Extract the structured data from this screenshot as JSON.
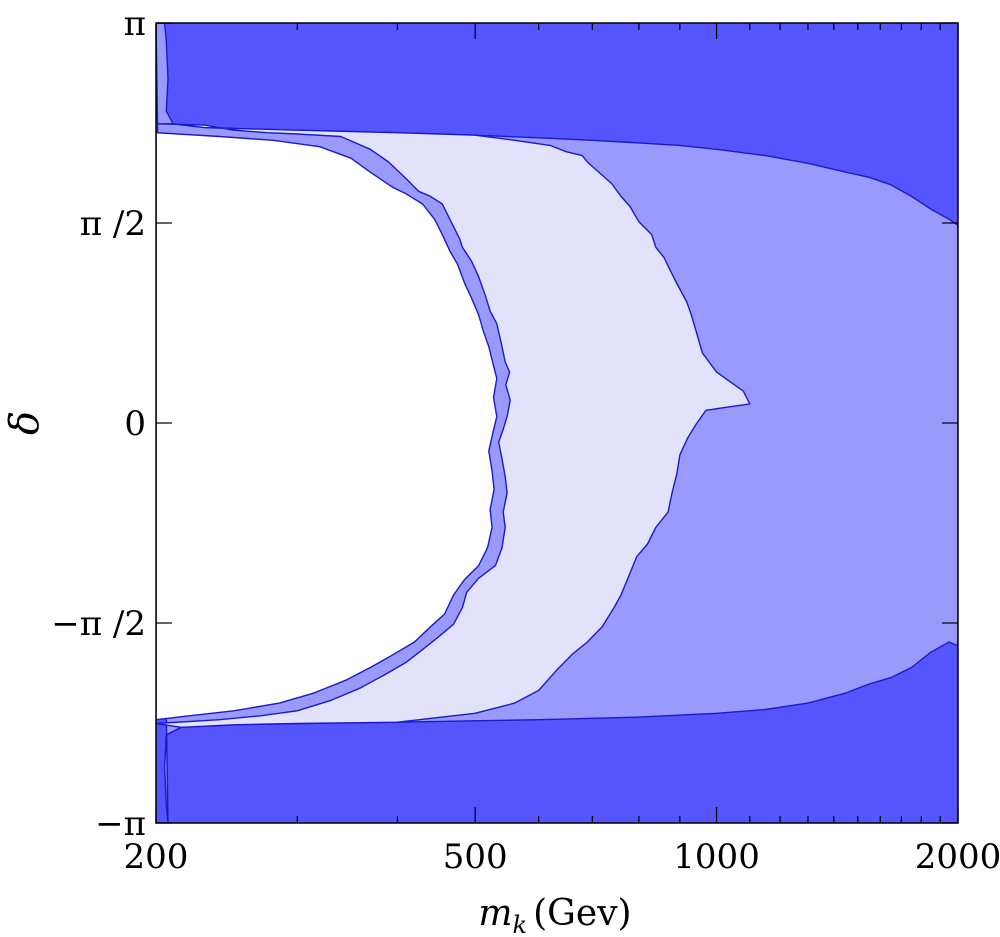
{
  "chart_data": {
    "type": "contour",
    "title": "",
    "xlabel": "m",
    "xlabel_subscript": "k",
    "xlabel_unit": "(Gev)",
    "ylabel": "δ",
    "x_scale": "log",
    "xlim": [
      200,
      2000
    ],
    "ylim": [
      -3.14159,
      3.14159
    ],
    "x_ticks": [
      {
        "value": 200,
        "label": "200"
      },
      {
        "value": 500,
        "label": "500"
      },
      {
        "value": 1000,
        "label": "1000"
      },
      {
        "value": 2000,
        "label": "2000"
      }
    ],
    "y_ticks": [
      {
        "value": -3.14159,
        "label": "−π"
      },
      {
        "value": -1.5708,
        "label": "−π /2"
      },
      {
        "value": 0,
        "label": "0"
      },
      {
        "value": 1.5708,
        "label": "π /2"
      },
      {
        "value": 3.14159,
        "label": "π"
      }
    ],
    "colors": {
      "level_0": "#ffffff",
      "level_1": "#e2e2fa",
      "level_2": "#9a9afd",
      "level_3": "#5555fd",
      "contour_line": "#1a1acc",
      "frame": "#000000"
    },
    "regions": [
      {
        "level": 3,
        "points": [
          [
            200,
            3.14159
          ],
          [
            2000,
            3.14159
          ],
          [
            2000,
            -3.14159
          ],
          [
            200,
            -3.14159
          ]
        ]
      },
      {
        "level": 2,
        "points": [
          [
            200,
            3.14159
          ],
          [
            205,
            3.14
          ],
          [
            206,
            3.0
          ],
          [
            207,
            2.7
          ],
          [
            206,
            2.45
          ],
          [
            210,
            2.35
          ],
          [
            230,
            2.32
          ],
          [
            260,
            2.31
          ],
          [
            300,
            2.3
          ],
          [
            400,
            2.28
          ],
          [
            500,
            2.26
          ],
          [
            600,
            2.24
          ],
          [
            700,
            2.22
          ],
          [
            800,
            2.2
          ],
          [
            900,
            2.18
          ],
          [
            1000,
            2.15
          ],
          [
            1150,
            2.1
          ],
          [
            1300,
            2.04
          ],
          [
            1450,
            1.97
          ],
          [
            1550,
            1.93
          ],
          [
            1650,
            1.87
          ],
          [
            1750,
            1.78
          ],
          [
            1850,
            1.68
          ],
          [
            1950,
            1.6
          ],
          [
            2000,
            1.55
          ],
          [
            2000,
            -1.75
          ],
          [
            1950,
            -1.72
          ],
          [
            1850,
            -1.8
          ],
          [
            1750,
            -1.92
          ],
          [
            1650,
            -2.0
          ],
          [
            1550,
            -2.05
          ],
          [
            1450,
            -2.12
          ],
          [
            1300,
            -2.2
          ],
          [
            1150,
            -2.25
          ],
          [
            1000,
            -2.28
          ],
          [
            800,
            -2.31
          ],
          [
            600,
            -2.33
          ],
          [
            400,
            -2.35
          ],
          [
            300,
            -2.36
          ],
          [
            250,
            -2.37
          ],
          [
            215,
            -2.39
          ],
          [
            206,
            -2.45
          ],
          [
            205,
            -2.7
          ],
          [
            206,
            -3.0
          ],
          [
            207,
            -3.14159
          ]
        ]
      },
      {
        "level": 1,
        "points": [
          [
            200,
            2.35
          ],
          [
            230,
            2.34
          ],
          [
            250,
            2.3
          ],
          [
            275,
            2.28
          ],
          [
            300,
            2.27
          ],
          [
            340,
            2.25
          ],
          [
            370,
            2.15
          ],
          [
            390,
            2.05
          ],
          [
            410,
            1.92
          ],
          [
            425,
            1.82
          ],
          [
            440,
            1.78
          ],
          [
            455,
            1.72
          ],
          [
            465,
            1.6
          ],
          [
            478,
            1.45
          ],
          [
            482,
            1.38
          ],
          [
            495,
            1.27
          ],
          [
            505,
            1.15
          ],
          [
            515,
            1.0
          ],
          [
            522,
            0.88
          ],
          [
            532,
            0.78
          ],
          [
            540,
            0.6
          ],
          [
            545,
            0.48
          ],
          [
            552,
            0.4
          ],
          [
            546,
            0.3
          ],
          [
            553,
            0.18
          ],
          [
            548,
            0.05
          ],
          [
            542,
            -0.05
          ],
          [
            535,
            -0.15
          ],
          [
            540,
            -0.28
          ],
          [
            545,
            -0.42
          ],
          [
            548,
            -0.55
          ],
          [
            542,
            -0.7
          ],
          [
            545,
            -0.82
          ],
          [
            540,
            -0.98
          ],
          [
            530,
            -1.12
          ],
          [
            505,
            -1.22
          ],
          [
            488,
            -1.33
          ],
          [
            482,
            -1.45
          ],
          [
            470,
            -1.58
          ],
          [
            450,
            -1.68
          ],
          [
            430,
            -1.78
          ],
          [
            410,
            -1.88
          ],
          [
            385,
            -1.98
          ],
          [
            360,
            -2.08
          ],
          [
            330,
            -2.18
          ],
          [
            300,
            -2.26
          ],
          [
            270,
            -2.3
          ],
          [
            240,
            -2.33
          ],
          [
            200,
            -2.36
          ],
          [
            215,
            -2.39
          ],
          [
            250,
            -2.37
          ],
          [
            300,
            -2.36
          ],
          [
            400,
            -2.35
          ],
          [
            500,
            -2.28
          ],
          [
            560,
            -2.2
          ],
          [
            600,
            -2.1
          ],
          [
            630,
            -1.95
          ],
          [
            660,
            -1.82
          ],
          [
            690,
            -1.72
          ],
          [
            720,
            -1.6
          ],
          [
            745,
            -1.45
          ],
          [
            760,
            -1.35
          ],
          [
            780,
            -1.18
          ],
          [
            795,
            -1.05
          ],
          [
            820,
            -0.95
          ],
          [
            840,
            -0.82
          ],
          [
            870,
            -0.7
          ],
          [
            880,
            -0.55
          ],
          [
            892,
            -0.4
          ],
          [
            900,
            -0.25
          ],
          [
            920,
            -0.12
          ],
          [
            945,
            -0.0
          ],
          [
            970,
            0.1
          ],
          [
            1020,
            0.12
          ],
          [
            1100,
            0.15
          ],
          [
            1080,
            0.25
          ],
          [
            1000,
            0.4
          ],
          [
            960,
            0.55
          ],
          [
            945,
            0.7
          ],
          [
            930,
            0.85
          ],
          [
            918,
            0.95
          ],
          [
            895,
            1.08
          ],
          [
            875,
            1.2
          ],
          [
            860,
            1.3
          ],
          [
            840,
            1.38
          ],
          [
            830,
            1.48
          ],
          [
            800,
            1.58
          ],
          [
            780,
            1.7
          ],
          [
            760,
            1.78
          ],
          [
            740,
            1.88
          ],
          [
            710,
            1.98
          ],
          [
            690,
            2.05
          ],
          [
            680,
            2.1
          ],
          [
            650,
            2.13
          ],
          [
            620,
            2.18
          ],
          [
            590,
            2.2
          ],
          [
            560,
            2.22
          ],
          [
            500,
            2.26
          ],
          [
            400,
            2.28
          ],
          [
            300,
            2.3
          ],
          [
            230,
            2.32
          ],
          [
            210,
            2.35
          ]
        ]
      },
      {
        "level": 0,
        "points": [
          [
            200,
            2.28
          ],
          [
            240,
            2.25
          ],
          [
            280,
            2.22
          ],
          [
            320,
            2.17
          ],
          [
            350,
            2.08
          ],
          [
            370,
            1.97
          ],
          [
            395,
            1.85
          ],
          [
            410,
            1.8
          ],
          [
            430,
            1.72
          ],
          [
            445,
            1.6
          ],
          [
            455,
            1.48
          ],
          [
            465,
            1.35
          ],
          [
            475,
            1.25
          ],
          [
            485,
            1.1
          ],
          [
            495,
            0.98
          ],
          [
            505,
            0.85
          ],
          [
            512,
            0.72
          ],
          [
            520,
            0.6
          ],
          [
            527,
            0.45
          ],
          [
            532,
            0.35
          ],
          [
            527,
            0.2
          ],
          [
            532,
            0.05
          ],
          [
            526,
            -0.08
          ],
          [
            520,
            -0.22
          ],
          [
            525,
            -0.38
          ],
          [
            528,
            -0.52
          ],
          [
            522,
            -0.68
          ],
          [
            525,
            -0.82
          ],
          [
            518,
            -0.98
          ],
          [
            505,
            -1.12
          ],
          [
            485,
            -1.23
          ],
          [
            470,
            -1.35
          ],
          [
            458,
            -1.5
          ],
          [
            440,
            -1.6
          ],
          [
            420,
            -1.72
          ],
          [
            395,
            -1.82
          ],
          [
            370,
            -1.92
          ],
          [
            345,
            -2.02
          ],
          [
            315,
            -2.12
          ],
          [
            285,
            -2.2
          ],
          [
            250,
            -2.26
          ],
          [
            220,
            -2.3
          ],
          [
            200,
            -2.33
          ]
        ]
      }
    ]
  }
}
